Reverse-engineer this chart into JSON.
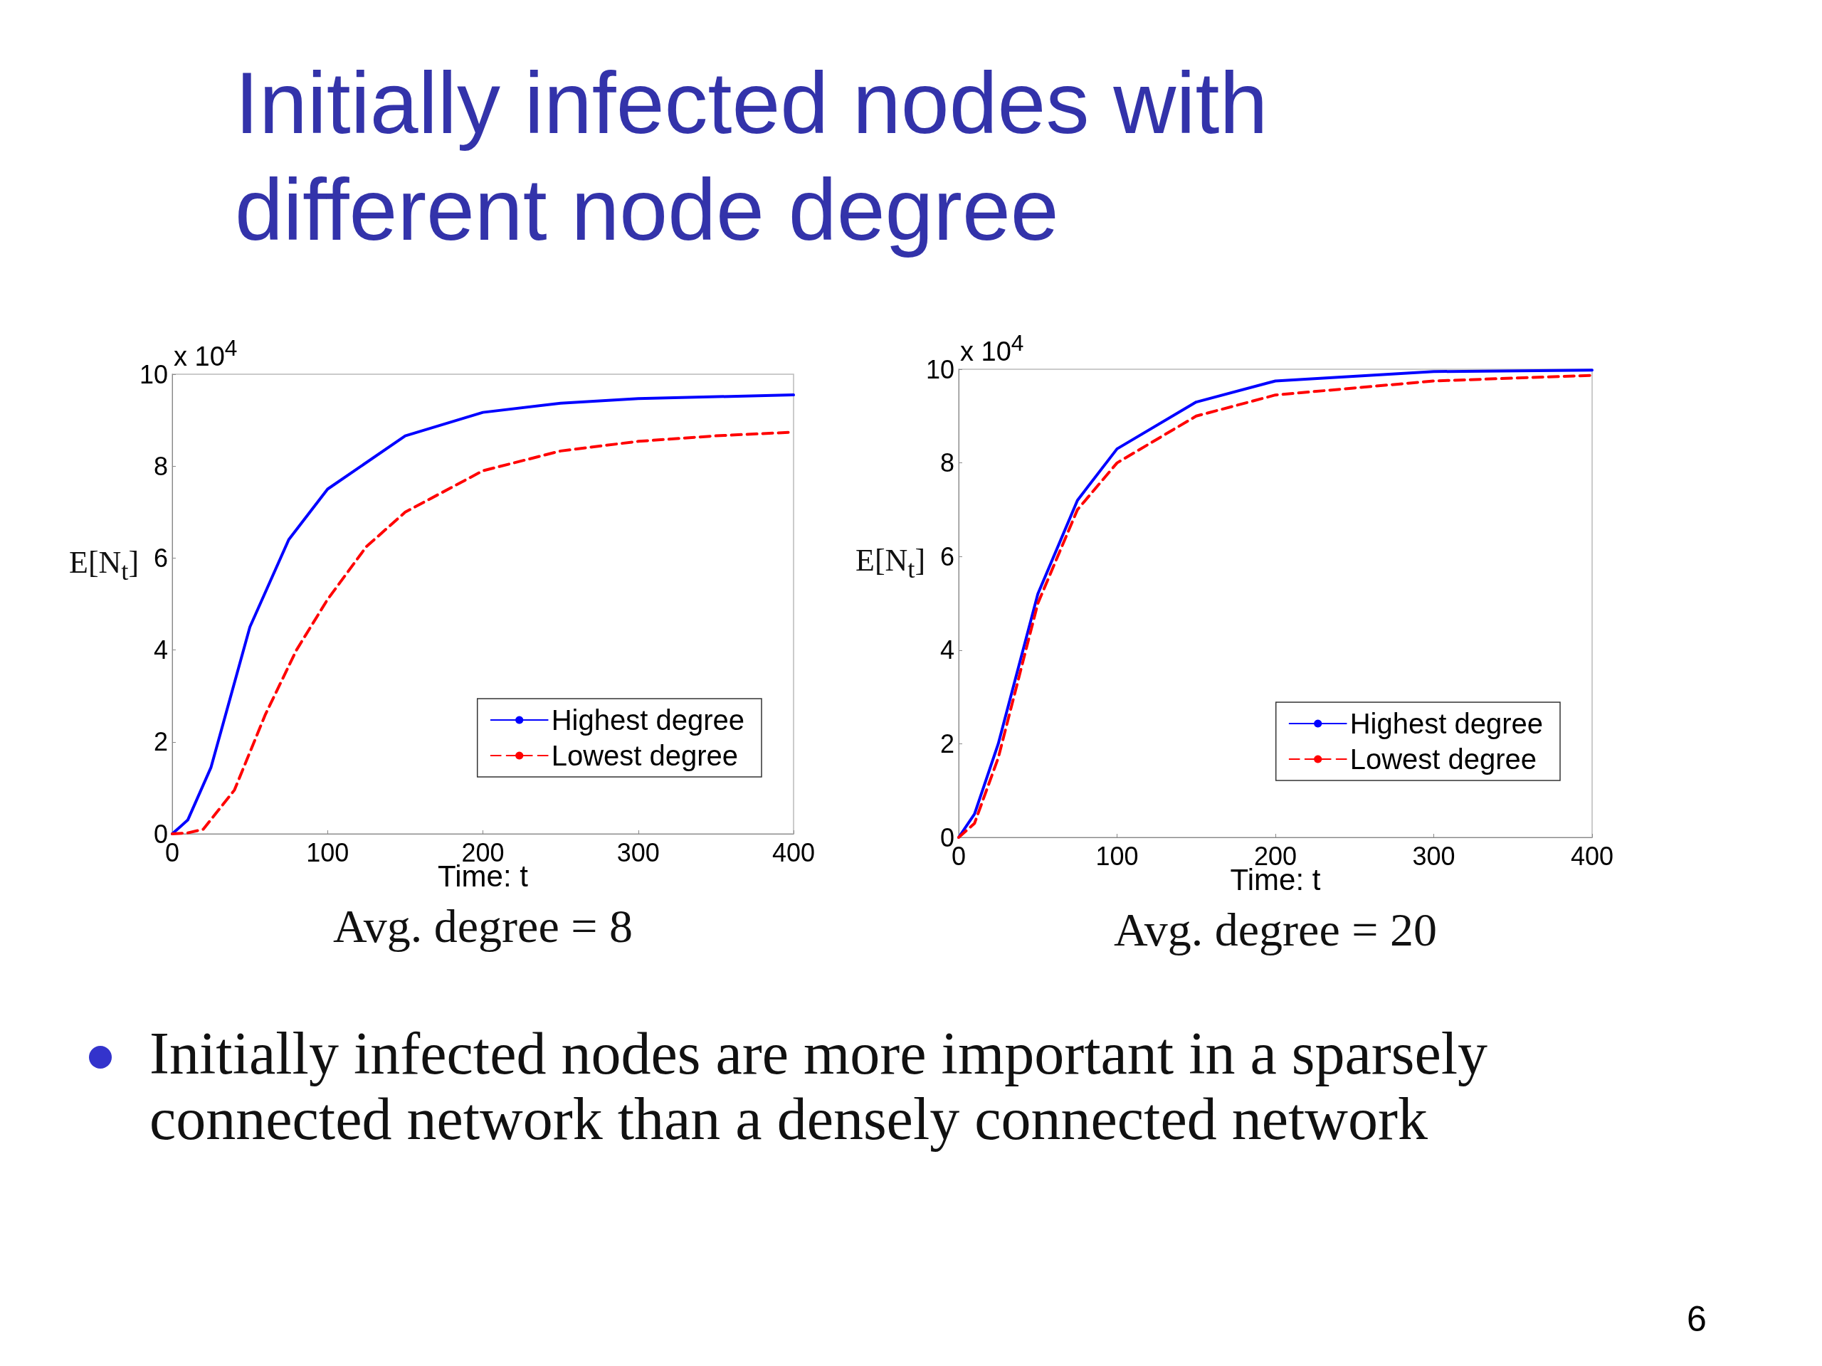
{
  "chart_data": [
    {
      "type": "line",
      "title": "Initially infected nodes with different node degree",
      "subtitle": "Avg. degree = 8",
      "xlabel": "Time: t",
      "ylabel": "E[N$_{t}$]",
      "annotations": [
        "x 10$^{4}$"
      ],
      "xlim": [
        0,
        400
      ],
      "xticks": [
        0,
        100,
        200,
        300,
        400
      ],
      "ylim": [
        0,
        10
      ],
      "yticks": [
        0,
        2,
        4,
        6,
        8,
        10
      ],
      "grid": false,
      "legend": "bottom right",
      "marker": "none",
      "series": [
        {
          "name": "Highest degree",
          "color": "#0000ff",
          "line_style": "solid",
          "x": [
            0,
            10,
            25,
            50,
            75,
            100,
            150,
            200,
            250,
            300,
            400
          ],
          "values": [
            0,
            0.3,
            1.45,
            4.5,
            6.4,
            7.5,
            8.66,
            9.17,
            9.37,
            9.47,
            9.55
          ]
        },
        {
          "name": "Lowest degree",
          "color": "#ff0000",
          "line_style": "dashed",
          "x": [
            0,
            10,
            20,
            40,
            60,
            80,
            100,
            125,
            150,
            200,
            250,
            300,
            350,
            400
          ],
          "values": [
            0,
            0.02,
            0.1,
            0.95,
            2.6,
            4.0,
            5.1,
            6.25,
            7.0,
            7.9,
            8.33,
            8.54,
            8.66,
            8.74
          ]
        }
      ]
    },
    {
      "type": "line",
      "subtitle": "Avg. degree = 20",
      "xlabel": "Time: t",
      "ylabel": "E[N$_{t}$]",
      "annotations": [
        "x 10$^{4}$",
        "Initially infected nodes are more important in a sparsely connected network than a densely connected network",
        "6"
      ],
      "xlim": [
        0,
        400
      ],
      "xticks": [
        0,
        100,
        200,
        300,
        400
      ],
      "ylim": [
        0,
        10
      ],
      "yticks": [
        0,
        2,
        4,
        6,
        8,
        10
      ],
      "grid": false,
      "legend": "bottom right",
      "marker": "none",
      "series": [
        {
          "name": "Highest degree",
          "color": "#0000ff",
          "line_style": "solid",
          "x": [
            0,
            10,
            25,
            50,
            75,
            100,
            150,
            200,
            300,
            400
          ],
          "values": [
            0,
            0.5,
            2.0,
            5.2,
            7.2,
            8.3,
            9.3,
            9.75,
            9.95,
            9.98
          ]
        },
        {
          "name": "Lowest degree",
          "color": "#ff0000",
          "line_style": "dashed",
          "x": [
            0,
            10,
            25,
            50,
            75,
            100,
            150,
            200,
            300,
            400
          ],
          "values": [
            0,
            0.3,
            1.7,
            5.0,
            7.0,
            8.0,
            9.0,
            9.45,
            9.75,
            9.87
          ]
        }
      ]
    }
  ]
}
